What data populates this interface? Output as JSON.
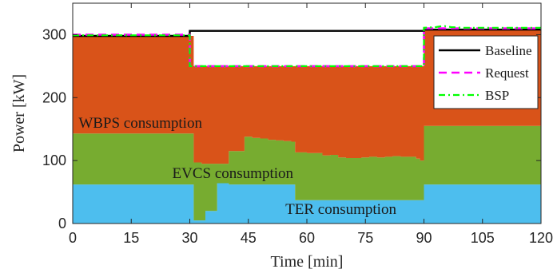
{
  "chart_data": {
    "type": "area",
    "xlabel": "Time [min]",
    "ylabel": "Power [kW]",
    "xlim": [
      0,
      120
    ],
    "ylim": [
      0,
      350
    ],
    "xticks": [
      0,
      15,
      30,
      45,
      60,
      75,
      90,
      105,
      120
    ],
    "yticks": [
      0,
      100,
      200,
      300
    ],
    "grid": false,
    "legend_placement": "right",
    "x": [
      0,
      30,
      31,
      33,
      34,
      36,
      37,
      39,
      40,
      42,
      44,
      46,
      48,
      50,
      52,
      54,
      56,
      57,
      60,
      62,
      64,
      66,
      68,
      70,
      72,
      74,
      76,
      78,
      80,
      82,
      84,
      86,
      88,
      89,
      90,
      91,
      92,
      94,
      96,
      98,
      100,
      105,
      110,
      115,
      120
    ],
    "areas": [
      {
        "name": "TER consumption",
        "color": "#4DBEEE",
        "top": [
          62,
          62,
          5,
          5,
          20,
          20,
          64,
          64,
          62,
          62,
          62,
          62,
          62,
          62,
          62,
          62,
          62,
          37,
          37,
          37,
          37,
          37,
          37,
          37,
          37,
          37,
          37,
          37,
          37,
          37,
          37,
          37,
          37,
          37,
          62,
          62,
          62,
          62,
          62,
          62,
          62,
          62,
          62,
          62,
          62
        ]
      },
      {
        "name": "EVCS consumption",
        "color": "#77AC30",
        "top": [
          143,
          143,
          97,
          95,
          95,
          95,
          95,
          95,
          115,
          115,
          138,
          136,
          135,
          133,
          132,
          131,
          130,
          113,
          112,
          112,
          108,
          109,
          105,
          104,
          104,
          105,
          106,
          105,
          106,
          107,
          106,
          106,
          103,
          100,
          155,
          155,
          155,
          155,
          155,
          155,
          155,
          155,
          155,
          155,
          155
        ]
      },
      {
        "name": "WBPS consumption",
        "color": "#D95319",
        "top": [
          298,
          298,
          250,
          250,
          250,
          250,
          250,
          250,
          250,
          250,
          250,
          250,
          250,
          250,
          250,
          250,
          250,
          250,
          250,
          250,
          250,
          250,
          250,
          250,
          250,
          250,
          250,
          250,
          250,
          250,
          250,
          250,
          250,
          250,
          308,
          309,
          309,
          309,
          309,
          309,
          309,
          309,
          309,
          309,
          309
        ]
      }
    ],
    "series": [
      {
        "name": "Baseline",
        "style": "solid",
        "color": "#000000",
        "x": [
          0,
          30,
          30,
          90,
          90,
          120
        ],
        "y": [
          298,
          298,
          306,
          306,
          308,
          308
        ]
      },
      {
        "name": "Request",
        "style": "dashed",
        "color": "#FF00FF",
        "x": [
          0,
          30,
          30,
          90,
          90,
          120
        ],
        "y": [
          300,
          300,
          250,
          250,
          310,
          310
        ]
      },
      {
        "name": "BSP",
        "style": "dashdot",
        "color": "#00FF00",
        "x": [
          0,
          30,
          30,
          90,
          90,
          93,
          95,
          97,
          100,
          120
        ],
        "y": [
          299,
          299,
          250,
          250,
          311,
          312,
          314,
          312,
          311,
          311
        ]
      }
    ],
    "annotations": [
      {
        "text": "WBPS consumption",
        "x": 1.5,
        "y": 152
      },
      {
        "text": "EVCS consumption",
        "x": 25.5,
        "y": 72
      },
      {
        "text": "TER consumption",
        "x": 54.5,
        "y": 15
      }
    ]
  }
}
